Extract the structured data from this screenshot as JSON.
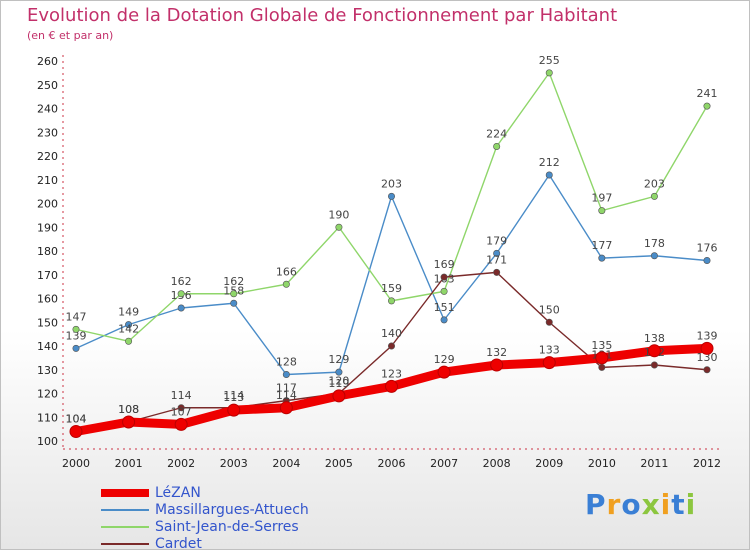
{
  "title": "Evolution de la Dotation Globale de Fonctionnement par Habitant",
  "subtitle": "(en € et par an)",
  "brand": {
    "letters": [
      {
        "ch": "P",
        "color": "#3a7fd5"
      },
      {
        "ch": "r",
        "color": "#f0a020"
      },
      {
        "ch": "o",
        "color": "#3a7fd5"
      },
      {
        "ch": "x",
        "color": "#8cc63f"
      },
      {
        "ch": "i",
        "color": "#f0a020"
      },
      {
        "ch": "t",
        "color": "#3a7fd5"
      },
      {
        "ch": "i",
        "color": "#8cc63f"
      }
    ]
  },
  "chart_data": {
    "type": "line",
    "x": [
      "2000",
      "2001",
      "2002",
      "2003",
      "2004",
      "2005",
      "2006",
      "2007",
      "2008",
      "2009",
      "2010",
      "2011",
      "2012"
    ],
    "ylim": [
      100,
      260
    ],
    "yticks": [
      100,
      110,
      120,
      130,
      140,
      150,
      160,
      170,
      180,
      190,
      200,
      210,
      220,
      230,
      240,
      250,
      260
    ],
    "grid": false,
    "legend_position": "bottom-left",
    "series": [
      {
        "name": "LéZAN",
        "color": "#ee0000",
        "values": [
          104,
          108,
          107,
          113,
          114,
          119,
          123,
          129,
          132,
          133,
          135,
          138,
          139
        ]
      },
      {
        "name": "Massillargues-Attuech",
        "color": "#4a8cc8",
        "values": [
          139,
          149,
          156,
          158,
          128,
          129,
          203,
          151,
          179,
          212,
          177,
          178,
          176
        ]
      },
      {
        "name": "Saint-Jean-de-Serres",
        "color": "#8fd66a",
        "values": [
          147,
          142,
          162,
          162,
          166,
          190,
          159,
          163,
          224,
          255,
          197,
          203,
          241
        ]
      },
      {
        "name": "Cardet",
        "color": "#7a2a2a",
        "values": [
          104,
          108,
          114,
          114,
          117,
          120,
          140,
          169,
          171,
          150,
          131,
          132,
          130
        ]
      }
    ]
  }
}
